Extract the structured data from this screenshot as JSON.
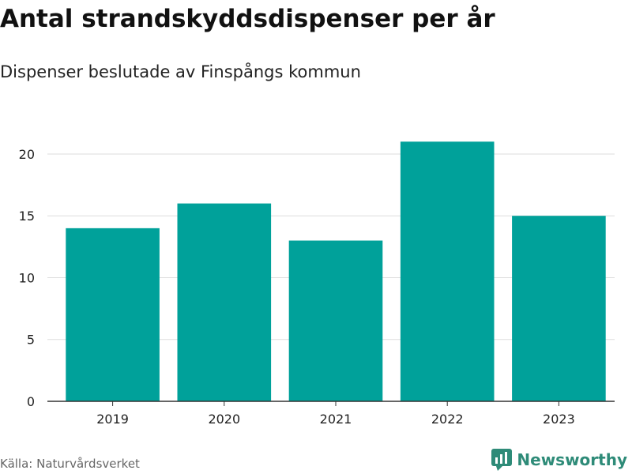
{
  "title": "Antal strandskyddsdispenser per år",
  "subtitle": "Dispenser beslutade av Finspångs kommun",
  "source": "Källa: Naturvårdsverket",
  "brand": {
    "name": "Newsworthy",
    "color": "#2e8b78",
    "icon": "newsworthy-logo-icon"
  },
  "chart_data": {
    "type": "bar",
    "categories": [
      "2019",
      "2020",
      "2021",
      "2022",
      "2023"
    ],
    "values": [
      14,
      16,
      13,
      21,
      15
    ],
    "title": "Antal strandskyddsdispenser per år",
    "subtitle": "Dispenser beslutade av Finspångs kommun",
    "xlabel": "",
    "ylabel": "",
    "ylim": [
      0,
      23
    ],
    "yticks": [
      0,
      5,
      10,
      15,
      20
    ],
    "grid": true,
    "legend": "none",
    "bar_color": "#00a19a"
  }
}
